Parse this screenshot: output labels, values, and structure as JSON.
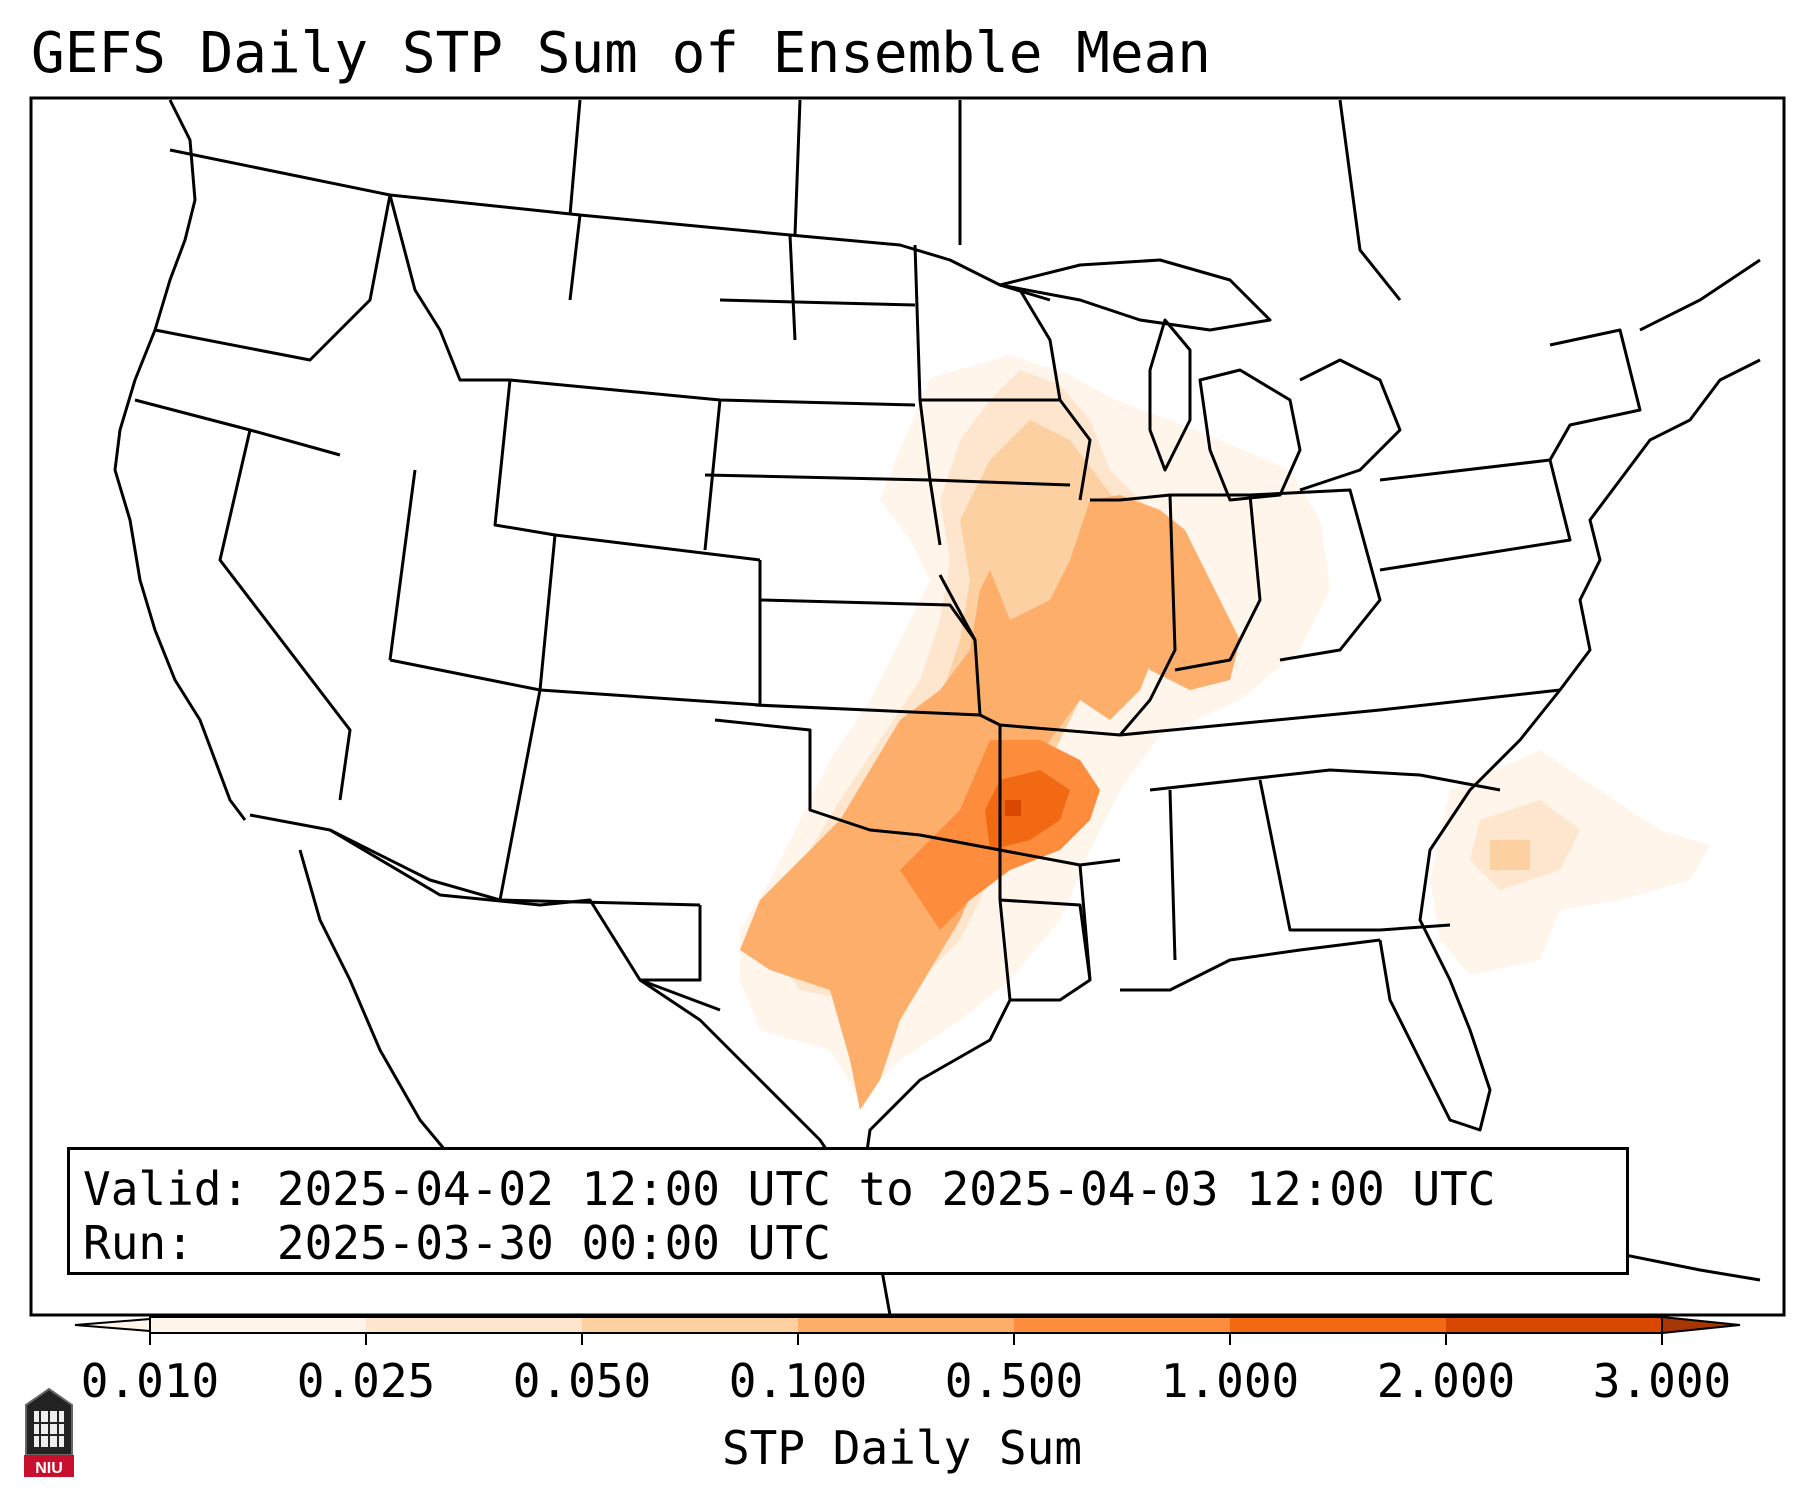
{
  "title": "GEFS Daily STP Sum of Ensemble Mean",
  "info": {
    "valid_label": "Valid:",
    "valid_value": "2025-04-02 12:00 UTC to 2025-04-03 12:00 UTC",
    "run_label": "Run:",
    "run_value": "2025-03-30 00:00 UTC"
  },
  "colorbar": {
    "label": "STP Daily Sum",
    "ticks": [
      "0.010",
      "0.025",
      "0.050",
      "0.100",
      "0.500",
      "1.000",
      "2.000",
      "3.000"
    ],
    "colors": [
      "#fff5eb",
      "#fee6ce",
      "#fdd0a2",
      "#fdae6b",
      "#fd8d3c",
      "#f16913",
      "#d94801",
      "#a63603"
    ]
  },
  "logo": {
    "text": "NIU",
    "color": "#c8102e"
  },
  "map": {
    "region": "Contiguous United States",
    "max_area": "Arkansas",
    "shaded_areas": [
      {
        "area": "Arkansas",
        "level": "1.000"
      },
      {
        "area": "Missouri",
        "level": "0.500"
      },
      {
        "area": "Illinois",
        "level": "0.500"
      },
      {
        "area": "East Texas",
        "level": "0.500"
      },
      {
        "area": "Iowa / Wisconsin",
        "level": "0.050"
      },
      {
        "area": "Indiana",
        "level": "0.100"
      },
      {
        "area": "Offshore South Carolina",
        "level": "0.100"
      }
    ]
  }
}
